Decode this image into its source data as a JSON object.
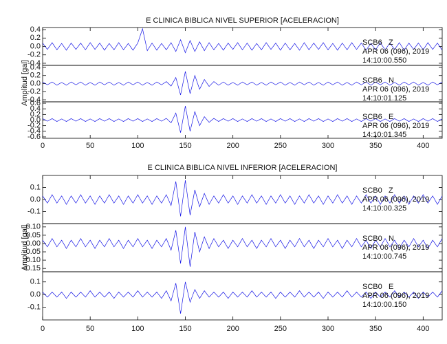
{
  "chart_data": [
    {
      "type": "line",
      "title": "E CLINICA BIBLICA NIVEL SUPERIOR [ACELERACION]",
      "y_label": "Amplitud [gal]",
      "xlim": [
        0,
        420
      ],
      "xticks": [
        0,
        50,
        100,
        150,
        200,
        250,
        300,
        350,
        400
      ],
      "x": [
        0,
        5,
        10,
        15,
        20,
        25,
        30,
        35,
        40,
        45,
        50,
        55,
        60,
        65,
        70,
        75,
        80,
        85,
        90,
        95,
        100,
        105,
        110,
        115,
        120,
        125,
        130,
        135,
        140,
        145,
        150,
        155,
        160,
        165,
        170,
        175,
        180,
        185,
        190,
        195,
        200,
        205,
        210,
        215,
        220,
        225,
        230,
        235,
        240,
        245,
        250,
        255,
        260,
        265,
        270,
        275,
        280,
        285,
        290,
        295,
        300,
        305,
        310,
        315,
        320,
        325,
        330,
        335,
        340,
        345,
        350,
        355,
        360,
        365,
        370,
        375,
        380,
        385,
        390,
        395,
        400,
        405,
        410,
        415,
        420
      ],
      "panels": [
        {
          "station": "SCB6",
          "component": "Z",
          "date": "APR 06 (096), 2019",
          "time": "14:10:00.550",
          "color": "#1414e6",
          "ylim": [
            -0.45,
            0.45
          ],
          "yticks": [
            -0.4,
            -0.2,
            {
              "value": 0,
              "label": "0.0"
            },
            0.2,
            0.4
          ],
          "values": [
            0.08,
            -0.07,
            0.09,
            -0.08,
            0.07,
            -0.09,
            0.08,
            -0.07,
            0.08,
            -0.08,
            0.09,
            -0.07,
            0.08,
            -0.09,
            0.07,
            -0.08,
            0.09,
            -0.08,
            0.07,
            -0.09,
            0.08,
            0.42,
            -0.1,
            0.08,
            -0.09,
            0.07,
            -0.08,
            0.09,
            -0.12,
            0.16,
            -0.15,
            0.14,
            -0.12,
            0.11,
            -0.1,
            0.09,
            -0.08,
            0.07,
            -0.09,
            0.08,
            -0.07,
            0.09,
            -0.08,
            0.08,
            -0.09,
            0.07,
            -0.08,
            0.09,
            -0.07,
            0.08,
            -0.09,
            0.08,
            -0.08,
            0.07,
            -0.09,
            0.09,
            -0.08,
            0.08,
            -0.07,
            0.09,
            -0.08,
            0.07,
            -0.09,
            0.08,
            -0.08,
            0.09,
            -0.07,
            0.08,
            -0.09,
            0.07,
            -0.08,
            0.09,
            -0.08,
            0.08,
            -0.07,
            0.09,
            -0.09,
            0.08,
            -0.07,
            0.08,
            -0.08,
            0.09,
            -0.07,
            0.08,
            -0.09
          ]
        },
        {
          "station": "SCB6",
          "component": "N",
          "date": "APR 06 (096), 2019",
          "time": "14:10:01.125",
          "color": "#1414e6",
          "ylim": [
            -0.45,
            0.45
          ],
          "yticks": [
            -0.4,
            -0.2,
            {
              "value": 0,
              "label": "0.0"
            },
            0.2,
            0.4
          ],
          "values": [
            0.04,
            -0.03,
            0.04,
            -0.04,
            0.03,
            -0.04,
            0.04,
            -0.03,
            0.04,
            -0.04,
            0.03,
            -0.04,
            0.04,
            -0.03,
            0.04,
            -0.04,
            0.03,
            -0.04,
            0.04,
            -0.03,
            0.04,
            -0.04,
            0.03,
            -0.04,
            0.04,
            -0.03,
            0.05,
            -0.06,
            0.15,
            -0.28,
            0.3,
            -0.25,
            0.2,
            -0.14,
            0.1,
            -0.07,
            0.05,
            -0.04,
            0.04,
            -0.04,
            0.03,
            -0.04,
            0.04,
            -0.03,
            0.04,
            -0.04,
            0.03,
            -0.04,
            0.04,
            -0.03,
            0.04,
            -0.04,
            0.03,
            -0.04,
            0.04,
            -0.03,
            0.04,
            -0.04,
            0.03,
            -0.04,
            0.04,
            -0.03,
            0.04,
            -0.04,
            0.03,
            -0.04,
            0.04,
            -0.03,
            0.04,
            -0.04,
            0.04,
            -0.03,
            0.04,
            -0.04,
            0.03,
            -0.04,
            0.04,
            -0.03,
            0.04,
            -0.04,
            0.03,
            -0.04,
            0.04,
            -0.03,
            0.04
          ]
        },
        {
          "station": "SCB6",
          "component": "E",
          "date": "APR 06 (096), 2019",
          "time": "14:10:01.345",
          "color": "#1414e6",
          "ylim": [
            -0.65,
            0.65
          ],
          "yticks": [
            -0.6,
            -0.4,
            -0.2,
            {
              "value": 0,
              "label": "0.0"
            },
            0.2,
            0.4,
            0.6
          ],
          "values": [
            0.05,
            -0.04,
            0.05,
            -0.05,
            0.04,
            -0.05,
            0.05,
            -0.04,
            0.05,
            -0.05,
            0.04,
            -0.05,
            0.05,
            -0.04,
            0.05,
            -0.05,
            0.04,
            -0.05,
            0.05,
            -0.04,
            0.05,
            -0.05,
            0.04,
            -0.05,
            0.05,
            -0.04,
            0.06,
            -0.1,
            0.25,
            -0.45,
            0.5,
            -0.4,
            0.3,
            -0.2,
            0.12,
            -0.08,
            0.06,
            -0.05,
            0.05,
            -0.04,
            0.05,
            -0.05,
            0.04,
            -0.05,
            0.05,
            -0.04,
            0.05,
            -0.05,
            0.04,
            -0.05,
            0.05,
            -0.04,
            0.05,
            -0.05,
            0.04,
            -0.05,
            0.05,
            -0.04,
            0.05,
            -0.05,
            0.04,
            -0.05,
            0.05,
            -0.04,
            0.05,
            -0.05,
            0.04,
            -0.05,
            0.05,
            -0.04,
            0.05,
            -0.05,
            0.04,
            -0.05,
            0.05,
            -0.04,
            0.05,
            -0.05,
            0.04,
            -0.05,
            0.05,
            -0.04,
            0.05,
            -0.05,
            0.04
          ]
        }
      ]
    },
    {
      "type": "line",
      "title": "E CLINICA BIBLICA NIVEL INFERIOR [ACELERACION]",
      "y_label": "Amplitud [gal]",
      "xlim": [
        0,
        420
      ],
      "xticks": [
        0,
        50,
        100,
        150,
        200,
        250,
        300,
        350,
        400
      ],
      "x": [
        0,
        5,
        10,
        15,
        20,
        25,
        30,
        35,
        40,
        45,
        50,
        55,
        60,
        65,
        70,
        75,
        80,
        85,
        90,
        95,
        100,
        105,
        110,
        115,
        120,
        125,
        130,
        135,
        140,
        145,
        150,
        155,
        160,
        165,
        170,
        175,
        180,
        185,
        190,
        195,
        200,
        205,
        210,
        215,
        220,
        225,
        230,
        235,
        240,
        245,
        250,
        255,
        260,
        265,
        270,
        275,
        280,
        285,
        290,
        295,
        300,
        305,
        310,
        315,
        320,
        325,
        330,
        335,
        340,
        345,
        350,
        355,
        360,
        365,
        370,
        375,
        380,
        385,
        390,
        395,
        400,
        405,
        410,
        415,
        420
      ],
      "panels": [
        {
          "station": "SCB0",
          "component": "Z",
          "date": "APR 06 (096), 2019",
          "time": "14:10:00.325",
          "color": "#1414e6",
          "ylim": [
            -0.2,
            0.2
          ],
          "yticks": [
            -0.1,
            {
              "value": 0,
              "label": "0.0"
            },
            0.1
          ],
          "values": [
            0.03,
            -0.03,
            0.04,
            -0.03,
            0.03,
            -0.04,
            0.03,
            -0.03,
            0.04,
            -0.03,
            0.03,
            -0.04,
            0.03,
            -0.03,
            0.04,
            -0.03,
            0.03,
            -0.04,
            0.03,
            -0.03,
            0.04,
            -0.03,
            0.03,
            -0.04,
            0.03,
            -0.03,
            0.04,
            -0.05,
            0.15,
            -0.14,
            0.16,
            -0.13,
            0.08,
            -0.06,
            0.05,
            -0.04,
            0.03,
            -0.03,
            0.04,
            -0.03,
            0.03,
            -0.04,
            0.03,
            -0.03,
            0.04,
            -0.03,
            0.03,
            -0.04,
            0.03,
            -0.03,
            0.04,
            -0.03,
            0.03,
            -0.04,
            0.03,
            -0.03,
            0.04,
            -0.03,
            0.03,
            -0.04,
            0.03,
            -0.03,
            0.04,
            -0.03,
            0.03,
            -0.04,
            0.03,
            -0.03,
            0.04,
            -0.03,
            0.03,
            -0.04,
            0.03,
            -0.03,
            0.04,
            -0.03,
            0.03,
            -0.04,
            0.03,
            -0.03,
            0.04,
            -0.03,
            0.03,
            -0.04,
            0.03
          ]
        },
        {
          "station": "SCB0",
          "component": "N",
          "date": "APR 06 (096), 2019",
          "time": "14:10:00.745",
          "color": "#1414e6",
          "ylim": [
            -0.17,
            0.12
          ],
          "yticks": [
            -0.15,
            {
              "value": -0.1,
              "label": "-0.10"
            },
            -0.05,
            {
              "value": 0,
              "label": "0.00"
            },
            0.05,
            {
              "value": 0.1,
              "label": "0.10"
            }
          ],
          "values": [
            0.02,
            -0.02,
            0.03,
            -0.02,
            0.02,
            -0.03,
            0.02,
            -0.02,
            0.03,
            -0.02,
            0.02,
            -0.03,
            0.02,
            -0.02,
            0.03,
            -0.02,
            0.02,
            -0.03,
            0.02,
            -0.02,
            0.03,
            -0.02,
            0.02,
            -0.03,
            0.02,
            -0.02,
            0.03,
            -0.04,
            0.08,
            -0.12,
            0.1,
            -0.14,
            0.07,
            -0.05,
            0.04,
            -0.03,
            0.03,
            -0.02,
            0.02,
            -0.03,
            0.02,
            -0.02,
            0.03,
            -0.02,
            0.02,
            -0.03,
            0.02,
            -0.02,
            0.03,
            -0.02,
            0.02,
            -0.03,
            0.02,
            -0.02,
            0.03,
            -0.02,
            0.02,
            -0.03,
            0.02,
            -0.02,
            0.03,
            -0.02,
            0.02,
            -0.03,
            0.02,
            -0.02,
            0.03,
            -0.02,
            0.02,
            -0.03,
            0.02,
            -0.02,
            0.03,
            -0.02,
            0.02,
            -0.03,
            0.02,
            -0.02,
            0.03,
            -0.02,
            0.02,
            -0.03,
            0.02,
            -0.02,
            0.03
          ]
        },
        {
          "station": "SCB0",
          "component": "E",
          "date": "APR 06 (096), 2019",
          "time": "14:10:00.150",
          "color": "#1414e6",
          "ylim": [
            -0.2,
            0.18
          ],
          "yticks": [
            -0.1,
            {
              "value": 0,
              "label": "0.0"
            },
            0.1
          ],
          "values": [
            0.02,
            -0.02,
            0.02,
            -0.02,
            0.02,
            -0.03,
            0.02,
            -0.02,
            0.02,
            -0.02,
            0.03,
            -0.02,
            0.02,
            -0.02,
            0.02,
            -0.03,
            0.02,
            -0.02,
            0.02,
            -0.02,
            0.03,
            -0.02,
            0.02,
            -0.02,
            0.02,
            -0.03,
            0.03,
            -0.05,
            0.09,
            -0.15,
            0.1,
            -0.06,
            0.04,
            -0.03,
            0.03,
            -0.02,
            0.02,
            -0.02,
            0.02,
            -0.03,
            0.02,
            -0.02,
            0.02,
            -0.02,
            0.03,
            -0.02,
            0.02,
            -0.02,
            0.02,
            -0.03,
            0.02,
            -0.02,
            0.02,
            -0.02,
            0.03,
            -0.02,
            0.02,
            -0.02,
            0.02,
            -0.03,
            0.02,
            -0.02,
            0.02,
            -0.02,
            0.03,
            -0.02,
            0.02,
            -0.02,
            0.02,
            -0.03,
            0.02,
            -0.02,
            0.02,
            -0.02,
            0.03,
            -0.02,
            0.02,
            -0.02,
            0.02,
            -0.03,
            0.02,
            -0.02,
            0.02,
            -0.02,
            0.03
          ]
        }
      ]
    }
  ]
}
